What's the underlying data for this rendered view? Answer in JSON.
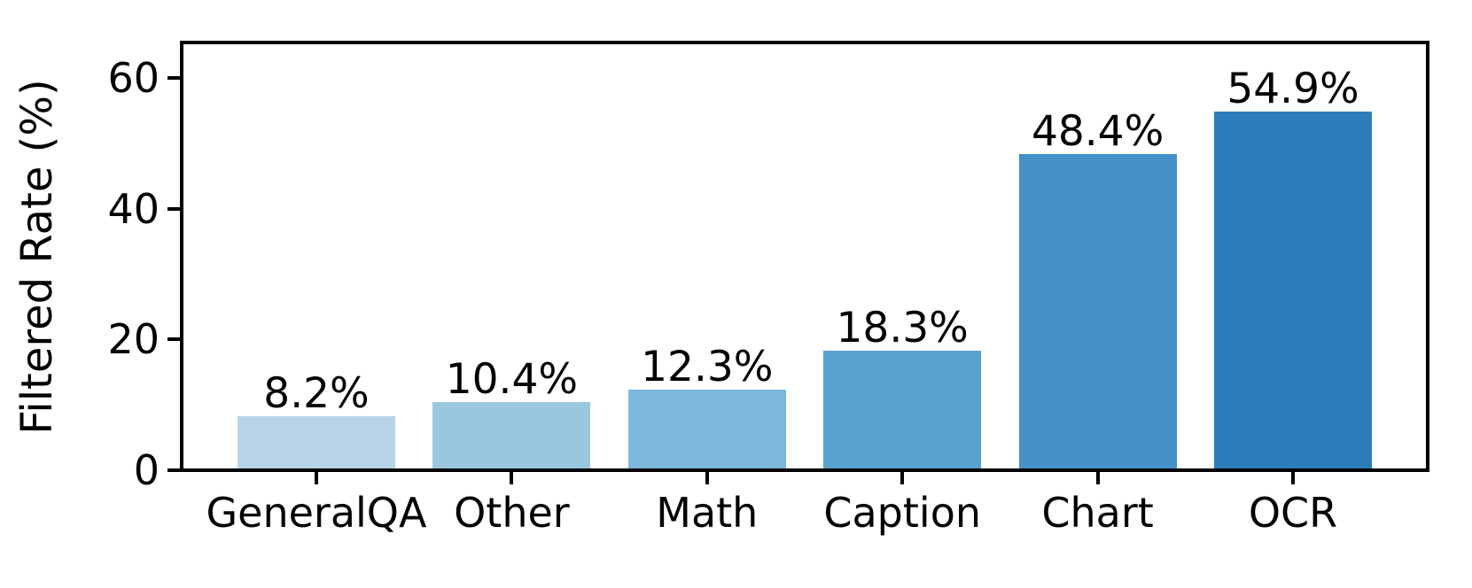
{
  "chart_data": {
    "type": "bar",
    "title": "",
    "xlabel": "",
    "ylabel": "Filtered Rate (%)",
    "categories": [
      "GeneralQA",
      "Other",
      "Math",
      "Caption",
      "Chart",
      "OCR"
    ],
    "values": [
      8.2,
      10.4,
      12.3,
      18.3,
      48.4,
      54.9
    ],
    "value_labels": [
      "8.2%",
      "10.4%",
      "12.3%",
      "18.3%",
      "48.4%",
      "54.9%"
    ],
    "bar_colors": [
      "#b7d4e9",
      "#9ac7e0",
      "#7cb7dc",
      "#59a1cf",
      "#4391c7",
      "#2d7cba"
    ],
    "ylim": [
      0,
      65.4
    ],
    "yticks": [
      0,
      20,
      40,
      60
    ],
    "ytick_labels": [
      "0",
      "20",
      "40",
      "60"
    ],
    "grid": false,
    "legend": "none",
    "axis_color": "#000000",
    "background_color": "#ffffff"
  }
}
